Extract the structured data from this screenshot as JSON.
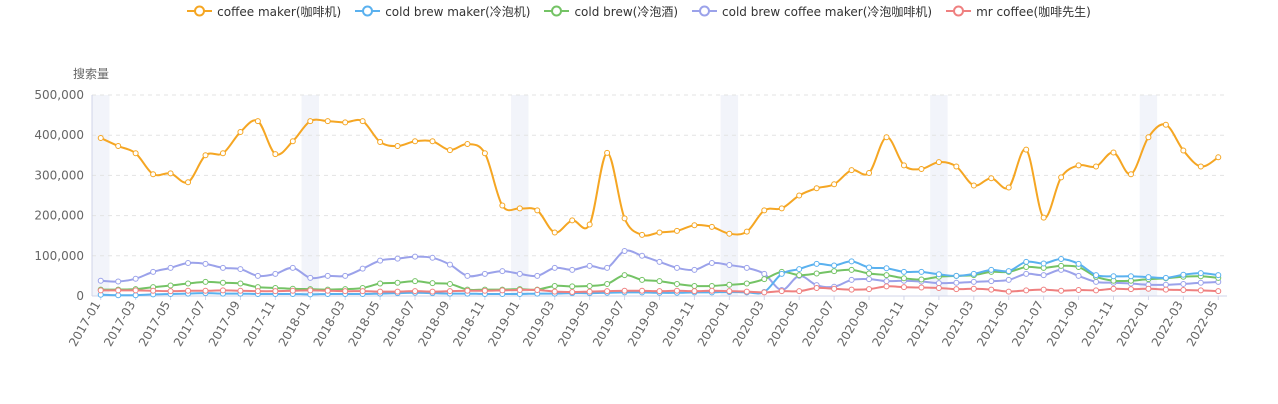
{
  "chart_data": {
    "type": "line",
    "ylabel": "搜索量",
    "ylim": [
      0,
      500000
    ],
    "yticks": [
      0,
      100000,
      200000,
      300000,
      400000,
      500000
    ],
    "ytick_labels": [
      "0",
      "100,000",
      "200,000",
      "300,000",
      "400,000",
      "500,000"
    ],
    "grid": "horizontal dashed",
    "legend_position": "top-center",
    "categories": [
      "2017-01",
      "2017-02",
      "2017-03",
      "2017-04",
      "2017-05",
      "2017-06",
      "2017-07",
      "2017-08",
      "2017-09",
      "2017-10",
      "2017-11",
      "2017-12",
      "2018-01",
      "2018-02",
      "2018-03",
      "2018-04",
      "2018-05",
      "2018-06",
      "2018-07",
      "2018-08",
      "2018-09",
      "2018-10",
      "2018-11",
      "2018-12",
      "2019-01",
      "2019-02",
      "2019-03",
      "2019-04",
      "2019-05",
      "2019-06",
      "2019-07",
      "2019-08",
      "2019-09",
      "2019-10",
      "2019-11",
      "2019-12",
      "2020-01",
      "2020-02",
      "2020-03",
      "2020-04",
      "2020-05",
      "2020-06",
      "2020-07",
      "2020-08",
      "2020-09",
      "2020-10",
      "2020-11",
      "2020-12",
      "2021-01",
      "2021-02",
      "2021-03",
      "2021-04",
      "2021-05",
      "2021-06",
      "2021-07",
      "2021-08",
      "2021-09",
      "2021-10",
      "2021-11",
      "2021-12",
      "2022-01",
      "2022-02",
      "2022-03",
      "2022-04",
      "2022-05"
    ],
    "x_tick_labels": [
      "2017-01",
      "2017-03",
      "2017-05",
      "2017-07",
      "2017-09",
      "2017-11",
      "2018-01",
      "2018-03",
      "2018-05",
      "2018-07",
      "2018-09",
      "2018-11",
      "2019-01",
      "2019-03",
      "2019-05",
      "2019-07",
      "2019-09",
      "2019-11",
      "2020-01",
      "2020-03",
      "2020-05",
      "2020-07",
      "2020-09",
      "2020-11",
      "2021-01",
      "2021-03",
      "2021-05",
      "2021-07",
      "2021-09",
      "2021-11",
      "2022-01",
      "2022-03",
      "2022-05"
    ],
    "highlighted_months": [
      "2017-01",
      "2018-01",
      "2019-01",
      "2020-01",
      "2021-01",
      "2022-01"
    ],
    "series": [
      {
        "name": "coffee maker(咖啡机)",
        "color": "#f5a623",
        "values": [
          393000,
          373000,
          355000,
          303000,
          305000,
          283000,
          350000,
          355000,
          408000,
          435000,
          353000,
          385000,
          435000,
          435000,
          432000,
          435000,
          383000,
          373000,
          385000,
          385000,
          363000,
          378000,
          355000,
          225000,
          218000,
          213000,
          158000,
          188000,
          178000,
          356000,
          193000,
          152000,
          158000,
          162000,
          176000,
          172000,
          155000,
          160000,
          213000,
          218000,
          250000,
          268000,
          278000,
          313000,
          306000,
          395000,
          325000,
          316000,
          333000,
          322000,
          275000,
          293000,
          270000,
          364000,
          195000,
          295000,
          325000,
          322000,
          357000,
          303000,
          395000,
          426000,
          362000,
          322000,
          345000
        ]
      },
      {
        "name": "cold brew maker(冷泡机)",
        "color": "#5ab1ef",
        "values": [
          3000,
          2000,
          2000,
          4000,
          5000,
          6000,
          7000,
          6000,
          6000,
          5000,
          5000,
          5000,
          4000,
          5000,
          5000,
          5000,
          6000,
          7000,
          8000,
          7000,
          6000,
          6000,
          5000,
          5000,
          5000,
          6000,
          6000,
          7000,
          7000,
          8000,
          9000,
          9000,
          8000,
          8000,
          9000,
          9000,
          10000,
          9000,
          10000,
          55000,
          67000,
          80000,
          76000,
          86000,
          71000,
          69000,
          60000,
          60000,
          54000,
          50000,
          55000,
          65000,
          62000,
          85000,
          81000,
          92000,
          80000,
          52000,
          49000,
          49000,
          47000,
          45000,
          53000,
          57000,
          52000
        ]
      },
      {
        "name": "cold brew(冷泡酒)",
        "color": "#74c365",
        "values": [
          16000,
          16000,
          17000,
          22000,
          26000,
          31000,
          35000,
          33000,
          31000,
          22000,
          20000,
          18000,
          17000,
          16000,
          17000,
          20000,
          31000,
          33000,
          37000,
          32000,
          30000,
          16000,
          16000,
          16000,
          17000,
          16000,
          25000,
          24000,
          25000,
          30000,
          52000,
          40000,
          37000,
          30000,
          25000,
          25000,
          28000,
          31000,
          42000,
          60000,
          52000,
          56000,
          62000,
          65000,
          56000,
          52000,
          44000,
          41000,
          48000,
          50000,
          52000,
          60000,
          60000,
          72000,
          70000,
          75000,
          72000,
          48000,
          38000,
          38000,
          42000,
          44000,
          48000,
          49000,
          45000
        ]
      },
      {
        "name": "cold brew coffee maker(冷泡咖啡机)",
        "color": "#9ba2ea",
        "values": [
          38000,
          36000,
          43000,
          60000,
          70000,
          82000,
          80000,
          70000,
          67000,
          50000,
          55000,
          70000,
          45000,
          50000,
          50000,
          68000,
          88000,
          93000,
          98000,
          95000,
          78000,
          50000,
          55000,
          62000,
          55000,
          50000,
          70000,
          65000,
          75000,
          70000,
          112000,
          100000,
          85000,
          70000,
          65000,
          82000,
          77000,
          70000,
          55000,
          15000,
          50000,
          27000,
          23000,
          40000,
          42000,
          37000,
          38000,
          36000,
          32000,
          33000,
          35000,
          37000,
          40000,
          55000,
          52000,
          65000,
          50000,
          35000,
          33000,
          31000,
          28000,
          28000,
          30000,
          33000,
          35000
        ]
      },
      {
        "name": "mr coffee(咖啡先生)",
        "color": "#ef8080",
        "values": [
          14000,
          14000,
          14000,
          13000,
          12000,
          13000,
          13000,
          14000,
          13000,
          12000,
          12000,
          13000,
          14000,
          13000,
          12000,
          12000,
          11000,
          11000,
          12000,
          11000,
          12000,
          13000,
          13000,
          14000,
          15000,
          15000,
          11000,
          10000,
          11000,
          12000,
          13000,
          13000,
          12000,
          13000,
          12000,
          13000,
          12000,
          11000,
          9000,
          12000,
          12000,
          20000,
          18000,
          16000,
          17000,
          24000,
          22000,
          21000,
          20000,
          17000,
          18000,
          16000,
          11000,
          14000,
          16000,
          13000,
          15000,
          14000,
          18000,
          17000,
          18000,
          16000,
          15000,
          14000,
          12000
        ]
      }
    ]
  }
}
